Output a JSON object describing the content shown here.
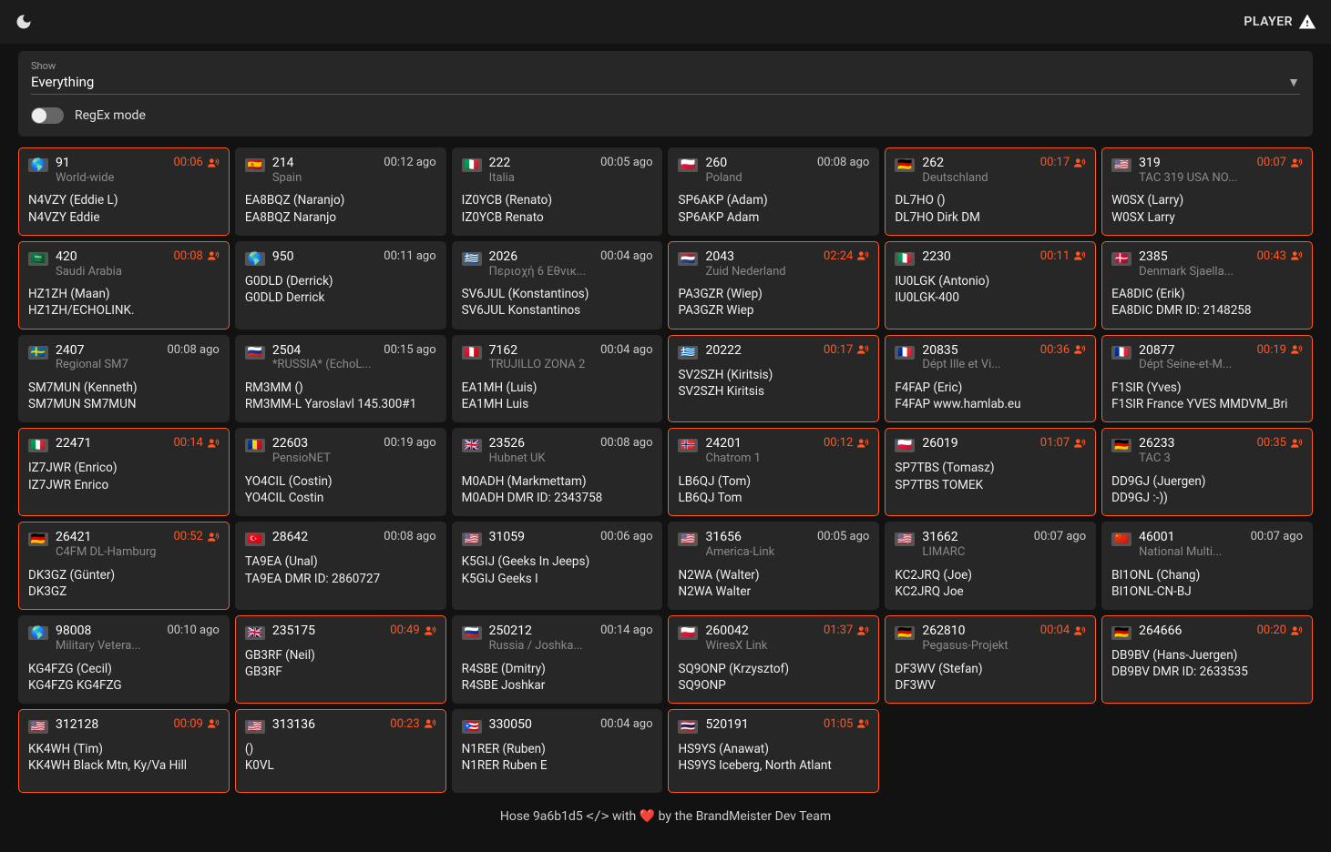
{
  "topbar": {
    "player_label": "PLAYER"
  },
  "filter": {
    "label": "Show",
    "value": "Everything",
    "regex_label": "RegEx mode"
  },
  "footer": {
    "prefix": "Hose 9a6b1d5 ",
    "suffix": " with ❤️ by the BrandMeister Dev Team"
  },
  "cards": [
    {
      "active": true,
      "flag": "🌎",
      "tg": "91",
      "name": "World-wide",
      "time": "00:06",
      "live": true,
      "l1": "N4VZY (Eddie L)",
      "l2": "N4VZY Eddie"
    },
    {
      "active": false,
      "flag": "🇪🇸",
      "tg": "214",
      "name": "Spain",
      "time": "00:12 ago",
      "live": false,
      "l1": "EA8BQZ (Naranjo)",
      "l2": "EA8BQZ Naranjo"
    },
    {
      "active": false,
      "flag": "🇮🇹",
      "tg": "222",
      "name": "Italia",
      "time": "00:05 ago",
      "live": false,
      "l1": "IZ0YCB (Renato)",
      "l2": "IZ0YCB Renato"
    },
    {
      "active": false,
      "flag": "🇵🇱",
      "tg": "260",
      "name": "Poland",
      "time": "00:08 ago",
      "live": false,
      "l1": "SP6AKP (Adam)",
      "l2": "SP6AKP Adam"
    },
    {
      "active": true,
      "flag": "🇩🇪",
      "tg": "262",
      "name": "Deutschland",
      "time": "00:17",
      "live": true,
      "l1": "DL7HO ()",
      "l2": "DL7HO Dirk DM"
    },
    {
      "active": true,
      "flag": "🇺🇸",
      "tg": "319",
      "name": "TAC 319 USA NO...",
      "time": "00:07",
      "live": true,
      "l1": "W0SX (Larry)",
      "l2": "W0SX Larry"
    },
    {
      "active": true,
      "flag": "🇸🇦",
      "tg": "420",
      "name": "Saudi Arabia",
      "time": "00:08",
      "live": true,
      "l1": "HZ1ZH (Maan)",
      "l2": "HZ1ZH/ECHOLINK."
    },
    {
      "active": false,
      "flag": "🌎",
      "tg": "950",
      "name": "",
      "time": "00:11 ago",
      "live": false,
      "l1": "G0DLD (Derrick)",
      "l2": "G0DLD Derrick"
    },
    {
      "active": false,
      "flag": "🇬🇷",
      "tg": "2026",
      "name": "Περιοχή 6 Εθνικ...",
      "time": "00:04 ago",
      "live": false,
      "l1": "SV6JUL (Konstantinos)",
      "l2": "SV6JUL Konstantinos"
    },
    {
      "active": true,
      "flag": "🇳🇱",
      "tg": "2043",
      "name": "Zuid Nederland",
      "time": "02:24",
      "live": true,
      "l1": "PA3GZR (Wiep)",
      "l2": "PA3GZR Wiep"
    },
    {
      "active": true,
      "flag": "🇮🇹",
      "tg": "2230",
      "name": "",
      "time": "00:11",
      "live": true,
      "l1": "IU0LGK (Antonio)",
      "l2": "IU0LGK-400"
    },
    {
      "active": true,
      "flag": "🇩🇰",
      "tg": "2385",
      "name": "Denmark Sjaella...",
      "time": "00:43",
      "live": true,
      "l1": "EA8DIC (Erik)",
      "l2": "EA8DIC DMR ID: 2148258"
    },
    {
      "active": false,
      "flag": "🇸🇪",
      "tg": "2407",
      "name": "Regional SM7",
      "time": "00:08 ago",
      "live": false,
      "l1": "SM7MUN (Kenneth)",
      "l2": "SM7MUN SM7MUN"
    },
    {
      "active": false,
      "flag": "🇷🇺",
      "tg": "2504",
      "name": "*RUSSIA* (EchoL...",
      "time": "00:15 ago",
      "live": false,
      "l1": "RM3MM ()",
      "l2": "RM3MM-L Yaroslavl 145.300#1"
    },
    {
      "active": false,
      "flag": "🇵🇪",
      "tg": "7162",
      "name": "TRUJILLO ZONA 2",
      "time": "00:04 ago",
      "live": false,
      "l1": "EA1MH (Luis)",
      "l2": "EA1MH Luis"
    },
    {
      "active": true,
      "flag": "🇬🇷",
      "tg": "20222",
      "name": "",
      "time": "00:17",
      "live": true,
      "l1": "SV2SZH (Kiritsis)",
      "l2": "SV2SZH Kiritsis"
    },
    {
      "active": true,
      "flag": "🇫🇷",
      "tg": "20835",
      "name": "Dépt Ille et Vi...",
      "time": "00:36",
      "live": true,
      "l1": "F4FAP (Eric)",
      "l2": "F4FAP www.hamlab.eu"
    },
    {
      "active": true,
      "flag": "🇫🇷",
      "tg": "20877",
      "name": "Dépt Seine-et-M...",
      "time": "00:19",
      "live": true,
      "l1": "F1SIR (Yves)",
      "l2": "F1SIR France YVES MMDVM_Bri"
    },
    {
      "active": true,
      "flag": "🇮🇹",
      "tg": "22471",
      "name": "",
      "time": "00:14",
      "live": true,
      "l1": "IZ7JWR (Enrico)",
      "l2": "IZ7JWR Enrico"
    },
    {
      "active": false,
      "flag": "🇷🇴",
      "tg": "22603",
      "name": "PensioNET",
      "time": "00:19 ago",
      "live": false,
      "l1": "YO4CIL (Costin)",
      "l2": "YO4CIL Costin"
    },
    {
      "active": false,
      "flag": "🇬🇧",
      "tg": "23526",
      "name": "Hubnet UK",
      "time": "00:08 ago",
      "live": false,
      "l1": "M0ADH (Markmettam)",
      "l2": "M0ADH DMR ID: 2343758"
    },
    {
      "active": true,
      "flag": "🇳🇴",
      "tg": "24201",
      "name": "Chatrom 1",
      "time": "00:12",
      "live": true,
      "l1": "LB6QJ (Tom)",
      "l2": "LB6QJ Tom"
    },
    {
      "active": true,
      "flag": "🇵🇱",
      "tg": "26019",
      "name": "",
      "time": "01:07",
      "live": true,
      "l1": "SP7TBS (Tomasz)",
      "l2": "SP7TBS TOMEK"
    },
    {
      "active": true,
      "flag": "🇩🇪",
      "tg": "26233",
      "name": "TAC 3",
      "time": "00:35",
      "live": true,
      "l1": "DD9GJ (Juergen)",
      "l2": "DD9GJ :-))"
    },
    {
      "active": true,
      "flag": "🇩🇪",
      "tg": "26421",
      "name": "C4FM DL-Hamburg",
      "time": "00:52",
      "live": true,
      "l1": "DK3GZ (Günter)",
      "l2": "DK3GZ"
    },
    {
      "active": false,
      "flag": "🇹🇷",
      "tg": "28642",
      "name": "",
      "time": "00:08 ago",
      "live": false,
      "l1": "TA9EA (Unal)",
      "l2": "TA9EA DMR ID: 2860727"
    },
    {
      "active": false,
      "flag": "🇺🇸",
      "tg": "31059",
      "name": "",
      "time": "00:06 ago",
      "live": false,
      "l1": "K5GIJ (Geeks In Jeeps)",
      "l2": "K5GIJ Geeks I"
    },
    {
      "active": false,
      "flag": "🇺🇸",
      "tg": "31656",
      "name": "America-Link",
      "time": "00:05 ago",
      "live": false,
      "l1": "N2WA (Walter)",
      "l2": "N2WA Walter"
    },
    {
      "active": false,
      "flag": "🇺🇸",
      "tg": "31662",
      "name": "LIMARC",
      "time": "00:07 ago",
      "live": false,
      "l1": "KC2JRQ (Joe)",
      "l2": "KC2JRQ Joe"
    },
    {
      "active": false,
      "flag": "🇨🇳",
      "tg": "46001",
      "name": "National Multi...",
      "time": "00:07 ago",
      "live": false,
      "l1": "BI1ONL (Chang)",
      "l2": "BI1ONL-CN-BJ"
    },
    {
      "active": false,
      "flag": "🌎",
      "tg": "98008",
      "name": "Military Vetera...",
      "time": "00:10 ago",
      "live": false,
      "l1": "KG4FZG (Cecil)",
      "l2": "KG4FZG KG4FZG"
    },
    {
      "active": true,
      "flag": "🇬🇧",
      "tg": "235175",
      "name": "",
      "time": "00:49",
      "live": true,
      "l1": "GB3RF (Neil)",
      "l2": "GB3RF"
    },
    {
      "active": false,
      "flag": "🇷🇺",
      "tg": "250212",
      "name": "Russia / Joshka...",
      "time": "00:14 ago",
      "live": false,
      "l1": "R4SBE (Dmitry)",
      "l2": "R4SBE Joshkar"
    },
    {
      "active": true,
      "flag": "🇵🇱",
      "tg": "260042",
      "name": "WiresX Link",
      "time": "01:37",
      "live": true,
      "l1": "SQ9ONP (Krzysztof)",
      "l2": "SQ9ONP"
    },
    {
      "active": true,
      "flag": "🇩🇪",
      "tg": "262810",
      "name": "Pegasus-Projekt",
      "time": "00:04",
      "live": true,
      "l1": "DF3WV (Stefan)",
      "l2": "DF3WV"
    },
    {
      "active": true,
      "flag": "🇩🇪",
      "tg": "264666",
      "name": "",
      "time": "00:20",
      "live": true,
      "l1": "DB9BV (Hans-Juergen)",
      "l2": "DB9BV DMR ID: 2633535"
    },
    {
      "active": true,
      "flag": "🇺🇸",
      "tg": "312128",
      "name": "",
      "time": "00:09",
      "live": true,
      "l1": "KK4WH (Tim)",
      "l2": "KK4WH Black Mtn, Ky/Va Hill"
    },
    {
      "active": true,
      "flag": "🇺🇸",
      "tg": "313136",
      "name": "",
      "time": "00:23",
      "live": true,
      "l1": "()",
      "l2": "K0VL"
    },
    {
      "active": false,
      "flag": "🇵🇷",
      "tg": "330050",
      "name": "",
      "time": "00:04 ago",
      "live": false,
      "l1": "N1RER (Ruben)",
      "l2": "N1RER Ruben E"
    },
    {
      "active": true,
      "flag": "🇹🇭",
      "tg": "520191",
      "name": "",
      "time": "01:05",
      "live": true,
      "l1": "HS9YS (Anawat)",
      "l2": "HS9YS Iceberg, North Atlant"
    }
  ]
}
